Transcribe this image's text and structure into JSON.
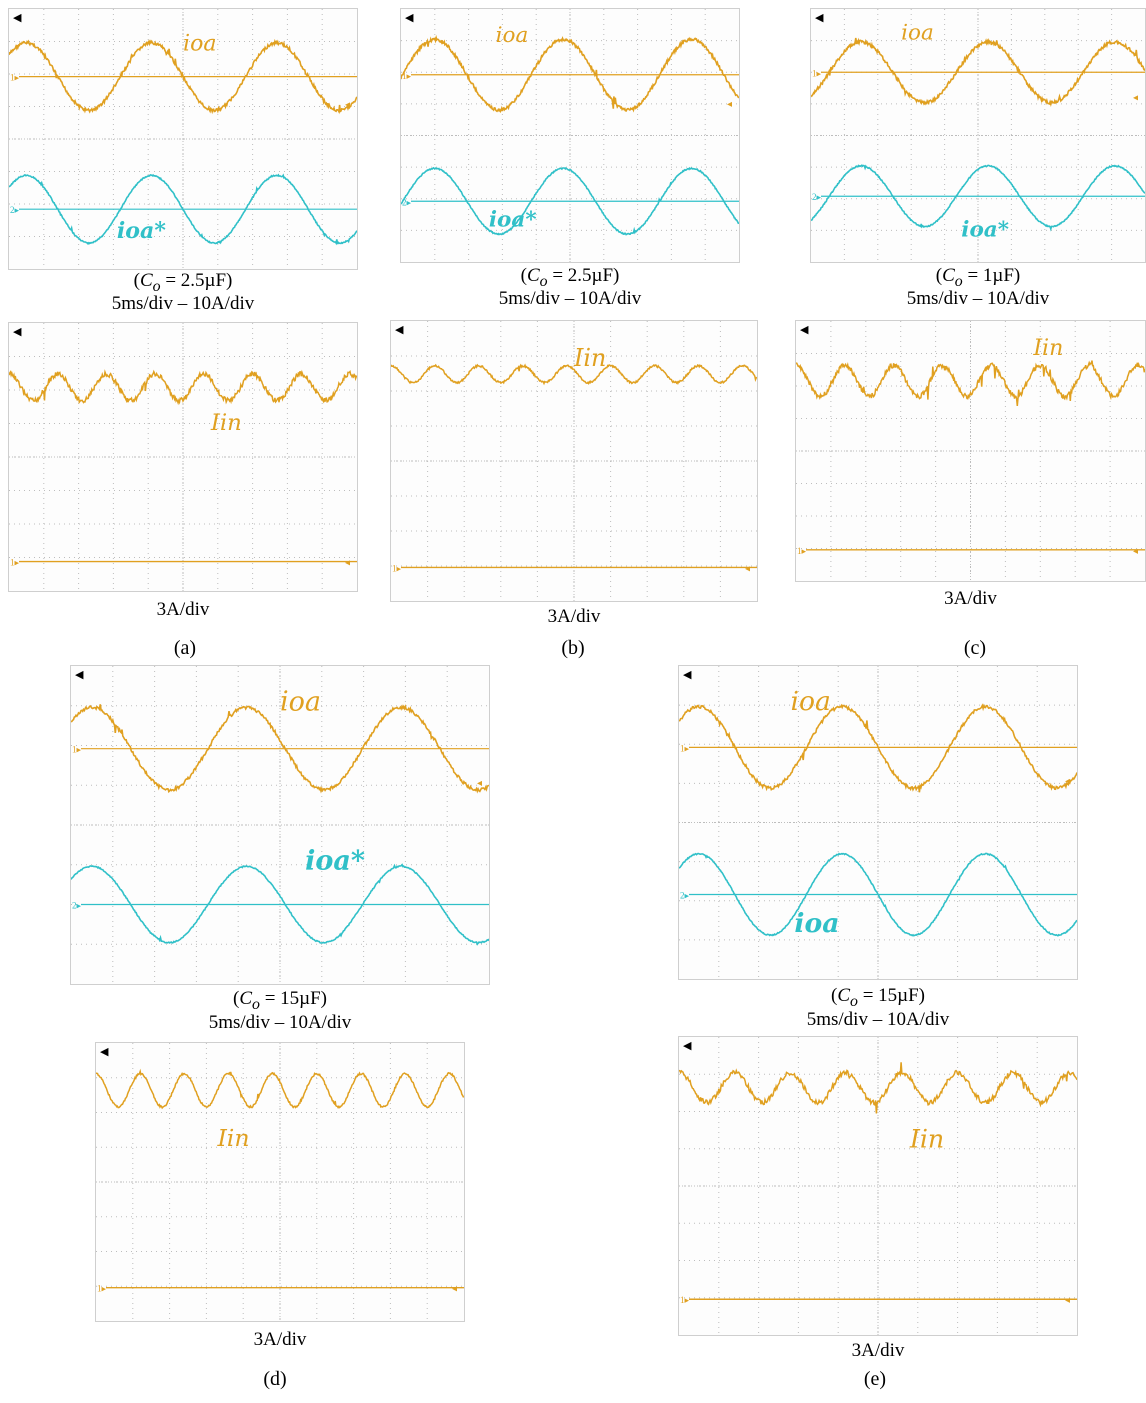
{
  "panels": [
    {
      "id": "a",
      "label": "(a)",
      "co": "2.5µF",
      "scale_top": "5ms/div – 10A/div",
      "scale_bottom": "3A/div",
      "top_label_1": "ioa",
      "top_label_2": "ioa*",
      "bottom_label": "Iin"
    },
    {
      "id": "b",
      "label": "(b)",
      "co": "2.5µF",
      "scale_top": "5ms/div – 10A/div",
      "scale_bottom": "3A/div",
      "top_label_1": "ioa",
      "top_label_2": "ioa*",
      "bottom_label": "Iin"
    },
    {
      "id": "c",
      "label": "(c)",
      "co": "1µF",
      "scale_top": "5ms/div – 10A/div",
      "scale_bottom": "3A/div",
      "top_label_1": "ioa",
      "top_label_2": "ioa*",
      "bottom_label": "Iin"
    },
    {
      "id": "d",
      "label": "(d)",
      "co": "15µF",
      "scale_top": "5ms/div – 10A/div",
      "scale_bottom": "3A/div",
      "top_label_1": "ioa",
      "top_label_2": "ioa*",
      "bottom_label": "Iin"
    },
    {
      "id": "e",
      "label": "(e)",
      "co": "15µF",
      "scale_top": "5ms/div – 10A/div",
      "scale_bottom": "3A/div",
      "top_label_1": "ioa",
      "top_label_2": "ioa",
      "bottom_label": "Iin"
    }
  ],
  "colors": {
    "ch1": "#e0a020",
    "ch2": "#30c0c8",
    "grid": "#bdbdbd"
  },
  "chart_data": [
    {
      "type": "line",
      "panel": "a-top",
      "series": [
        {
          "name": "ioa",
          "channel": 1
        },
        {
          "name": "ioa*",
          "channel": 2
        }
      ]
    },
    {
      "type": "line",
      "panel": "a-bottom",
      "series": [
        {
          "name": "Iin",
          "channel": 1
        }
      ]
    },
    {
      "type": "line",
      "panel": "b-top",
      "series": [
        {
          "name": "ioa",
          "channel": 1
        },
        {
          "name": "ioa*",
          "channel": 2
        }
      ]
    },
    {
      "type": "line",
      "panel": "b-bottom",
      "series": [
        {
          "name": "Iin",
          "channel": 1
        }
      ]
    },
    {
      "type": "line",
      "panel": "c-top",
      "series": [
        {
          "name": "ioa",
          "channel": 1
        },
        {
          "name": "ioa*",
          "channel": 2
        }
      ]
    },
    {
      "type": "line",
      "panel": "c-bottom",
      "series": [
        {
          "name": "Iin",
          "channel": 1
        }
      ]
    },
    {
      "type": "line",
      "panel": "d-top",
      "series": [
        {
          "name": "ioa",
          "channel": 1
        },
        {
          "name": "ioa*",
          "channel": 2
        }
      ]
    },
    {
      "type": "line",
      "panel": "d-bottom",
      "series": [
        {
          "name": "Iin",
          "channel": 1
        }
      ]
    },
    {
      "type": "line",
      "panel": "e-top",
      "series": [
        {
          "name": "ioa",
          "channel": 1
        },
        {
          "name": "ioa",
          "channel": 2
        }
      ]
    },
    {
      "type": "line",
      "panel": "e-bottom",
      "series": [
        {
          "name": "Iin",
          "channel": 1
        }
      ]
    }
  ]
}
